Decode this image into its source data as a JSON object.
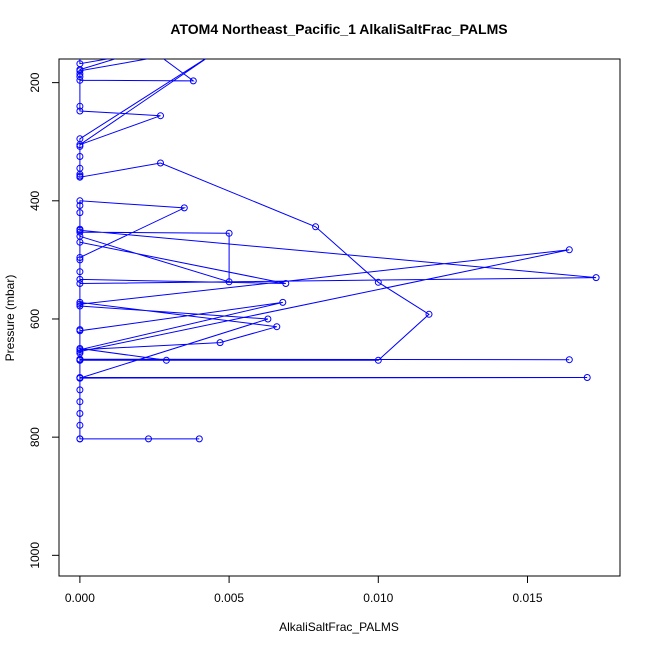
{
  "chart_data": {
    "type": "line",
    "title": "ATOM4 Northeast_Pacific_1 AlkaliSaltFrac_PALMS",
    "xlabel": "AlkaliSaltFrac_PALMS",
    "ylabel": "Pressure (mbar)",
    "xlim": [
      -0.0007,
      0.0181
    ],
    "ylim": [
      1035,
      160
    ],
    "y_reversed": true,
    "grid": false,
    "legend": "none",
    "x_ticks": [
      0.0,
      0.005,
      0.01,
      0.015
    ],
    "x_tick_labels": [
      "0.000",
      "0.005",
      "0.010",
      "0.015"
    ],
    "y_ticks": [
      200,
      400,
      600,
      800,
      1000
    ],
    "y_tick_labels": [
      "200",
      "400",
      "600",
      "800",
      "1000"
    ],
    "colors": {
      "series": "#0000ff",
      "axis": "#000000"
    },
    "series": [
      {
        "marker": "open-circle",
        "points": [
          [
            0.0,
            155
          ],
          [
            0.0,
            168
          ],
          [
            0.0015,
            155
          ],
          [
            0.0,
            178
          ],
          [
            0.0,
            190
          ],
          [
            0.0,
            196
          ],
          [
            0.0038,
            197
          ],
          [
            0.0027,
            156
          ],
          [
            0.0,
            180
          ],
          [
            0.0,
            185
          ],
          [
            0.0,
            240
          ],
          [
            0.0,
            248
          ],
          [
            0.0027,
            256
          ],
          [
            0.0,
            305
          ],
          [
            0.0045,
            150
          ],
          [
            0.0,
            295
          ],
          [
            0.0,
            308
          ],
          [
            0.0,
            325
          ],
          [
            0.0,
            345
          ],
          [
            0.0,
            355
          ],
          [
            0.0,
            358
          ],
          [
            0.0,
            360
          ],
          [
            0.0027,
            336
          ],
          [
            0.0079,
            444
          ],
          [
            0.01,
            538
          ],
          [
            0.0117,
            592
          ],
          [
            0.01,
            670
          ],
          [
            0.0,
            670
          ],
          [
            0.0,
            650
          ],
          [
            0.0029,
            670
          ],
          [
            0.0,
            670
          ],
          [
            0.0,
            668
          ],
          [
            0.0164,
            669
          ],
          [
            0.0,
            668
          ],
          [
            0.0,
            700
          ],
          [
            0.017,
            699
          ],
          [
            0.0,
            699
          ],
          [
            0.0,
            520
          ],
          [
            0.0,
            500
          ],
          [
            0.0,
            496
          ],
          [
            0.0035,
            412
          ],
          [
            0.0,
            400
          ],
          [
            0.0,
            408
          ],
          [
            0.0,
            420
          ],
          [
            0.0,
            453
          ],
          [
            0.005,
            455
          ],
          [
            0.005,
            537
          ],
          [
            0.0,
            460
          ],
          [
            0.0,
            450
          ],
          [
            0.0173,
            530
          ],
          [
            0.0,
            540
          ],
          [
            0.0,
            533
          ],
          [
            0.0069,
            540
          ],
          [
            0.0,
            470
          ],
          [
            0.0,
            448
          ],
          [
            0.0,
            575
          ],
          [
            0.0164,
            483
          ],
          [
            0.0,
            655
          ],
          [
            0.0,
            658
          ],
          [
            0.0,
            572
          ],
          [
            0.0066,
            613
          ],
          [
            0.0047,
            640
          ],
          [
            0.0,
            652
          ],
          [
            0.0068,
            572
          ],
          [
            0.0,
            620
          ],
          [
            0.0,
            618
          ],
          [
            0.0,
            578
          ],
          [
            0.0063,
            600
          ],
          [
            0.0,
            700
          ],
          [
            0.0,
            720
          ],
          [
            0.0,
            740
          ],
          [
            0.0,
            760
          ],
          [
            0.0,
            780
          ],
          [
            0.0,
            803
          ],
          [
            0.0023,
            803
          ],
          [
            0.004,
            803
          ],
          [
            0.0,
            803
          ]
        ]
      }
    ]
  }
}
